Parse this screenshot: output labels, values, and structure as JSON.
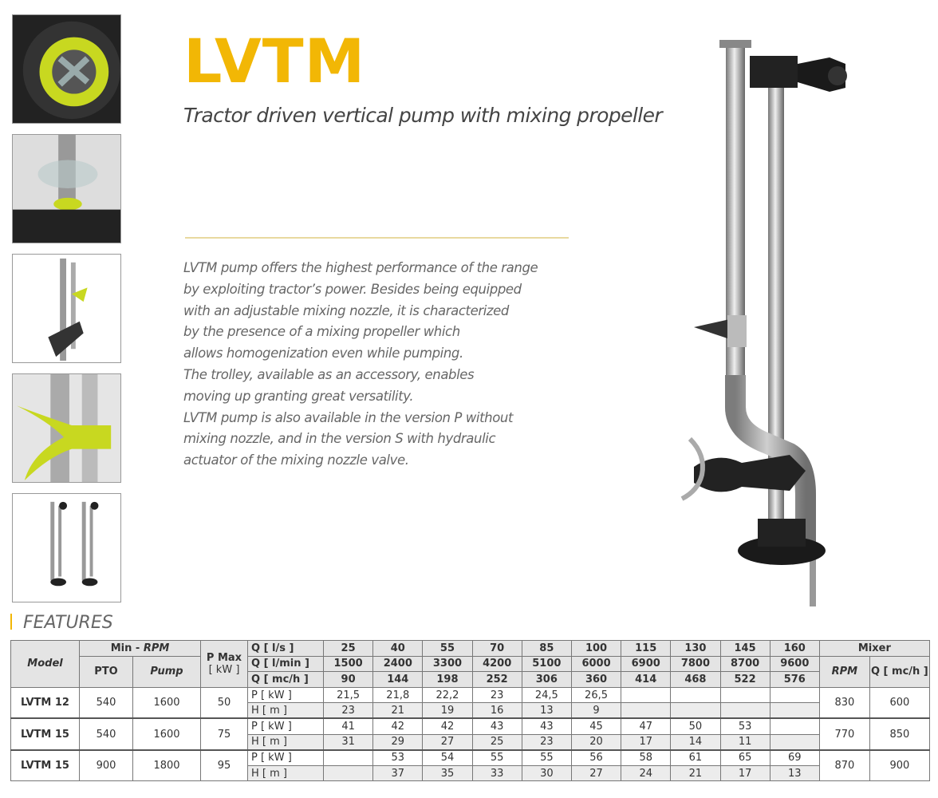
{
  "title": "LVTM",
  "subtitle": "Tractor driven vertical pump with mixing propeller",
  "description": [
    "LVTM pump offers the highest performance of the range",
    "by exploiting tractor’s power. Besides being equipped",
    "with an adjustable mixing nozzle, it is characterized",
    "by the presence of a mixing propeller which",
    "allows homogenization even while pumping.",
    "The trolley, available as an accessory, enables",
    "moving up granting great versatility.",
    "LVTM pump is also available in the version P without",
    "mixing nozzle, and in the version S with hydraulic",
    "actuator of the mixing nozzle valve."
  ],
  "features_heading": "FEATURES",
  "colors": {
    "brand": "#f2b705",
    "accent_green": "#c8d820",
    "header_bg": "#e4e4e4"
  },
  "table": {
    "model": "Model",
    "min": "Min - ",
    "rpm": "RPM",
    "pto": "PTO",
    "pump": "Pump",
    "pmax": "P Max",
    "kw": "[ kW ]",
    "q_ls": "Q [ l/s ]",
    "q_lmin": "Q [ l/min ]",
    "q_mch": "Q [ mc/h ]",
    "ls": [
      "25",
      "40",
      "55",
      "70",
      "85",
      "100",
      "115",
      "130",
      "145",
      "160"
    ],
    "lmin": [
      "1500",
      "2400",
      "3300",
      "4200",
      "5100",
      "6000",
      "6900",
      "7800",
      "8700",
      "9600"
    ],
    "mch": [
      "90",
      "144",
      "198",
      "252",
      "306",
      "360",
      "414",
      "468",
      "522",
      "576"
    ],
    "mixer": "Mixer",
    "mixer_rpm": "RPM",
    "mixer_q": "Q [ mc/h ]",
    "p_label": "P   [ kW ]",
    "h_label": "H   [ m ]",
    "rows": [
      {
        "model": "LVTM 12",
        "pto": "540",
        "pump": "1600",
        "pmax": "50",
        "p": [
          "21,5",
          "21,8",
          "22,2",
          "23",
          "24,5",
          "26,5",
          "",
          "",
          "",
          ""
        ],
        "h": [
          "23",
          "21",
          "19",
          "16",
          "13",
          "9",
          "",
          "",
          "",
          ""
        ],
        "mrpm": "830",
        "mq": "600"
      },
      {
        "model": "LVTM 15",
        "pto": "540",
        "pump": "1600",
        "pmax": "75",
        "p": [
          "41",
          "42",
          "42",
          "43",
          "43",
          "45",
          "47",
          "50",
          "53",
          ""
        ],
        "h": [
          "31",
          "29",
          "27",
          "25",
          "23",
          "20",
          "17",
          "14",
          "11",
          ""
        ],
        "mrpm": "770",
        "mq": "850"
      },
      {
        "model": "LVTM 15",
        "pto": "900",
        "pump": "1800",
        "pmax": "95",
        "p": [
          "",
          "53",
          "54",
          "55",
          "55",
          "56",
          "58",
          "61",
          "65",
          "69"
        ],
        "h": [
          "",
          "37",
          "35",
          "33",
          "30",
          "27",
          "24",
          "21",
          "17",
          "13"
        ],
        "mrpm": "870",
        "mq": "900"
      }
    ]
  }
}
